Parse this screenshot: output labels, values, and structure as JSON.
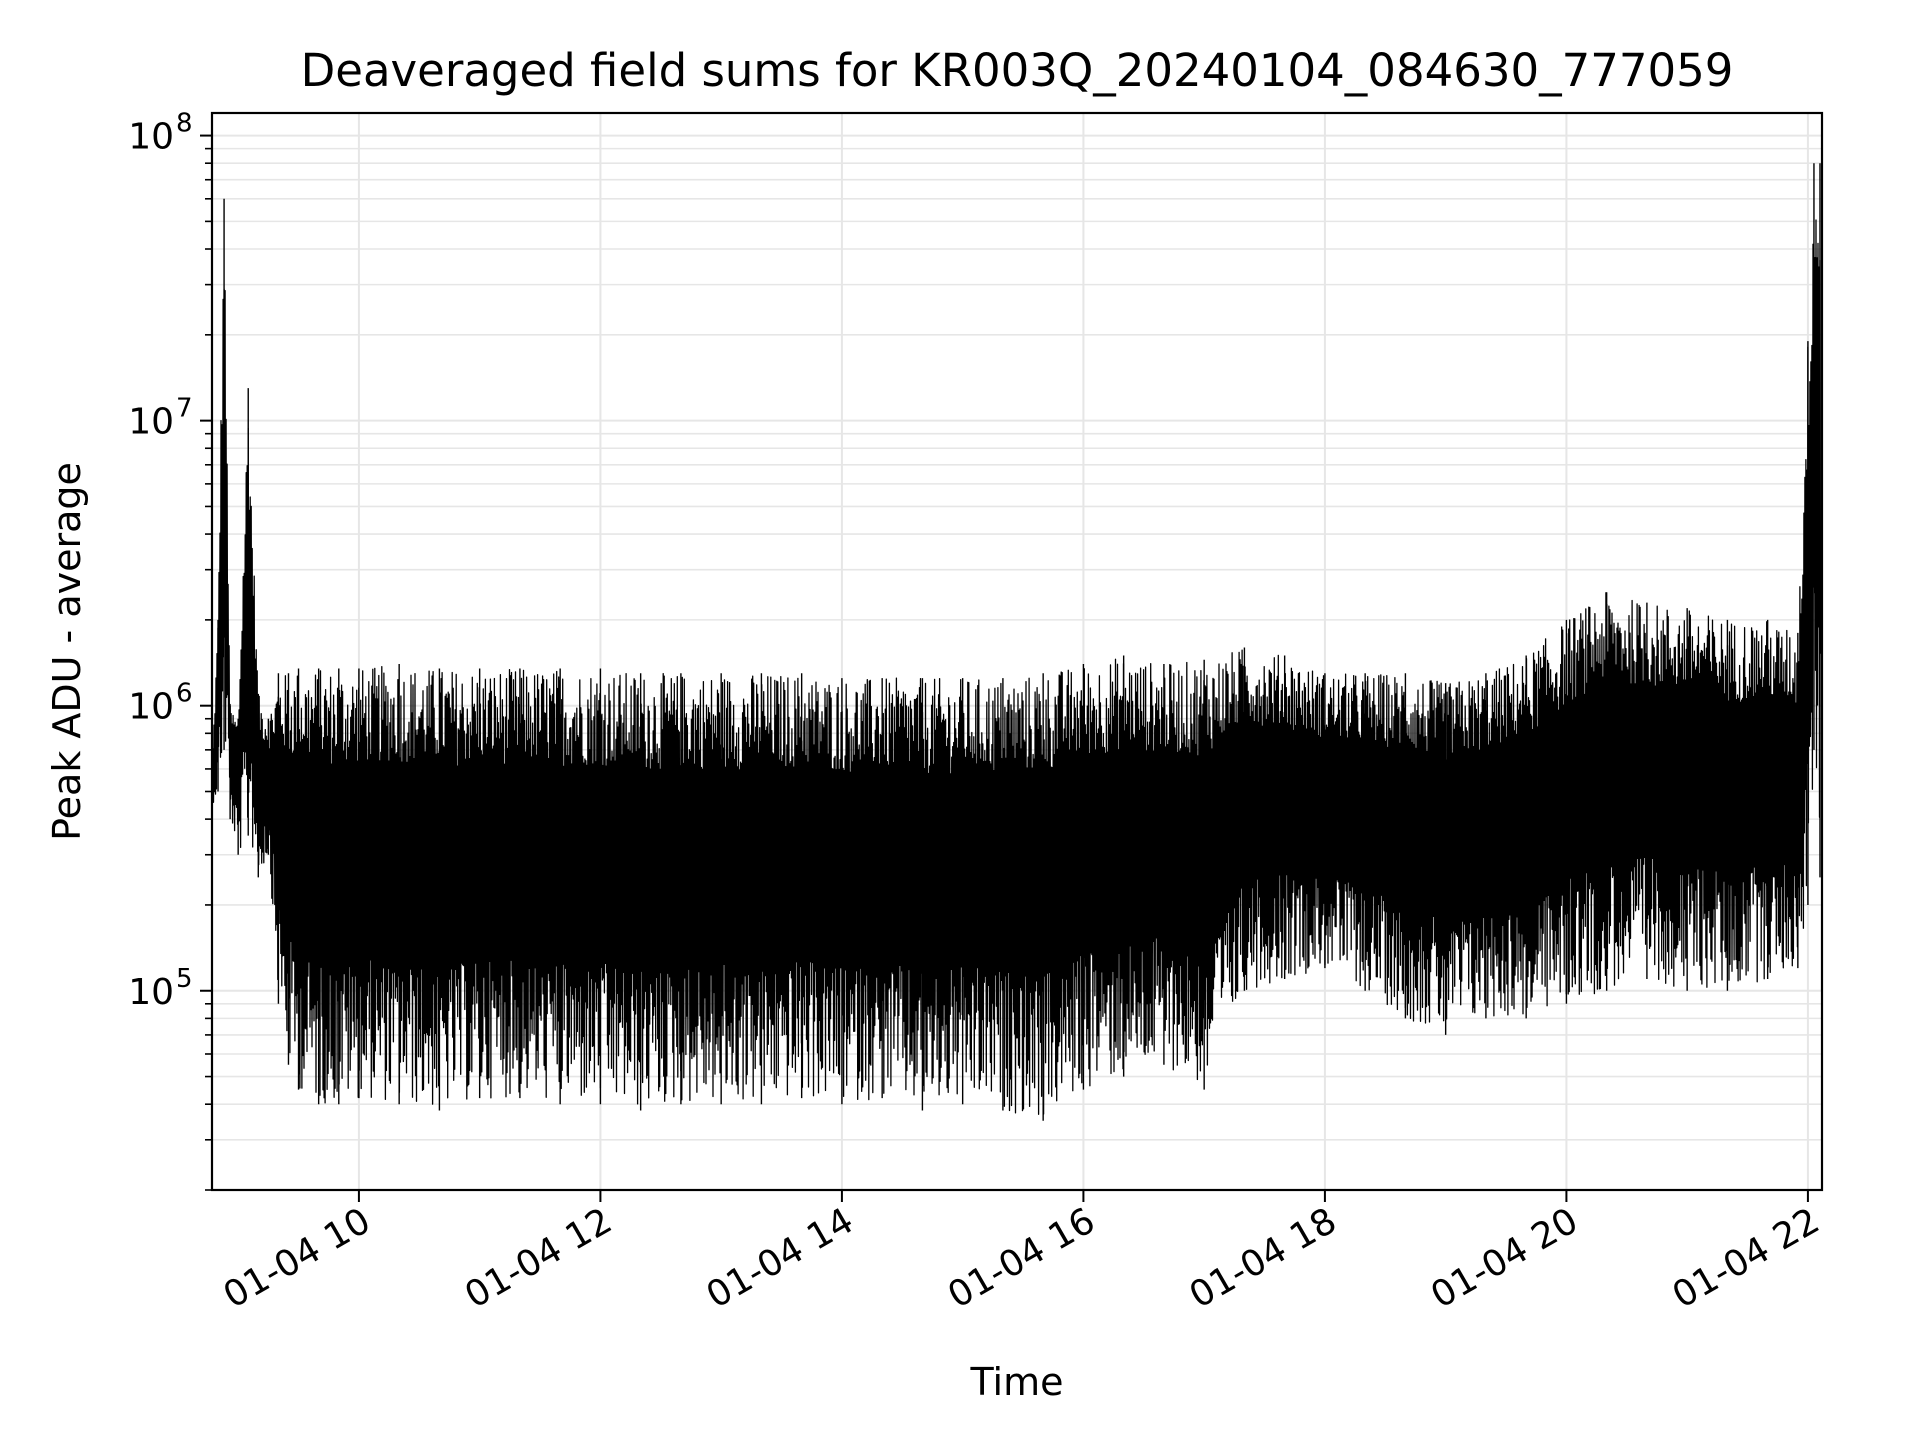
{
  "chart_data": {
    "type": "line",
    "title": "Deaveraged field sums for KR003Q_20240104_084630_777059",
    "xlabel": "Time",
    "ylabel": "Peak ADU - average",
    "yscale": "log",
    "xlim": [
      "2024-01-04 08:47",
      "2024-01-04 22:07"
    ],
    "ylim": [
      20000,
      120000000
    ],
    "grid": true,
    "x_ticks": [
      {
        "value": "2024-01-04 10:00",
        "label": "01-04 10"
      },
      {
        "value": "2024-01-04 12:00",
        "label": "01-04 12"
      },
      {
        "value": "2024-01-04 14:00",
        "label": "01-04 14"
      },
      {
        "value": "2024-01-04 16:00",
        "label": "01-04 16"
      },
      {
        "value": "2024-01-04 18:00",
        "label": "01-04 18"
      },
      {
        "value": "2024-01-04 20:00",
        "label": "01-04 20"
      },
      {
        "value": "2024-01-04 22:00",
        "label": "01-04 22"
      }
    ],
    "y_ticks": [
      {
        "value": 100000,
        "base": "10",
        "exp": "5"
      },
      {
        "value": 1000000,
        "base": "10",
        "exp": "6"
      },
      {
        "value": 10000000,
        "base": "10",
        "exp": "7"
      },
      {
        "value": 100000000,
        "base": "10",
        "exp": "8"
      }
    ],
    "line_color": "#000000",
    "series": [
      {
        "note_values_are_envelope": true,
        "x": [
          "2024-01-04 08:47",
          "2024-01-04 08:50",
          "2024-01-04 08:53",
          "2024-01-04 08:56",
          "2024-01-04 09:00",
          "2024-01-04 09:05",
          "2024-01-04 09:10",
          "2024-01-04 09:15",
          "2024-01-04 09:20",
          "2024-01-04 09:25",
          "2024-01-04 09:30",
          "2024-01-04 09:40",
          "2024-01-04 09:50",
          "2024-01-04 10:00",
          "2024-01-04 10:20",
          "2024-01-04 10:40",
          "2024-01-04 11:00",
          "2024-01-04 11:20",
          "2024-01-04 11:40",
          "2024-01-04 12:00",
          "2024-01-04 12:20",
          "2024-01-04 12:40",
          "2024-01-04 13:00",
          "2024-01-04 13:20",
          "2024-01-04 13:40",
          "2024-01-04 14:00",
          "2024-01-04 14:20",
          "2024-01-04 14:40",
          "2024-01-04 15:00",
          "2024-01-04 15:20",
          "2024-01-04 15:40",
          "2024-01-04 16:00",
          "2024-01-04 16:20",
          "2024-01-04 16:40",
          "2024-01-04 17:00",
          "2024-01-04 17:20",
          "2024-01-04 17:40",
          "2024-01-04 18:00",
          "2024-01-04 18:20",
          "2024-01-04 18:40",
          "2024-01-04 19:00",
          "2024-01-04 19:20",
          "2024-01-04 19:40",
          "2024-01-04 20:00",
          "2024-01-04 20:20",
          "2024-01-04 20:40",
          "2024-01-04 21:00",
          "2024-01-04 21:20",
          "2024-01-04 21:40",
          "2024-01-04 21:55",
          "2024-01-04 22:00",
          "2024-01-04 22:03",
          "2024-01-04 22:06"
        ],
        "y_high": [
          600000,
          2000000,
          60000000,
          1000000,
          900000,
          13000000,
          1100000,
          900000,
          1300000,
          1300000,
          1350000,
          1350000,
          1350000,
          1350000,
          1400000,
          1350000,
          1350000,
          1350000,
          1350000,
          1350000,
          1300000,
          1300000,
          1300000,
          1300000,
          1300000,
          1250000,
          1250000,
          1250000,
          1250000,
          1250000,
          1300000,
          1400000,
          1500000,
          1400000,
          1450000,
          1600000,
          1500000,
          1300000,
          1300000,
          1300000,
          1200000,
          1300000,
          1500000,
          2000000,
          2500000,
          2300000,
          2200000,
          2000000,
          2000000,
          1800000,
          19000000,
          80000000,
          80000000
        ],
        "y_low": [
          450000,
          500000,
          700000,
          400000,
          300000,
          350000,
          250000,
          300000,
          90000,
          55000,
          45000,
          40000,
          40000,
          42000,
          40000,
          38000,
          42000,
          42000,
          40000,
          40000,
          38000,
          40000,
          40000,
          40000,
          42000,
          40000,
          42000,
          38000,
          40000,
          38000,
          35000,
          45000,
          50000,
          55000,
          45000,
          100000,
          110000,
          120000,
          100000,
          80000,
          70000,
          80000,
          80000,
          90000,
          100000,
          110000,
          100000,
          100000,
          110000,
          120000,
          200000,
          700000,
          250000
        ]
      }
    ]
  }
}
